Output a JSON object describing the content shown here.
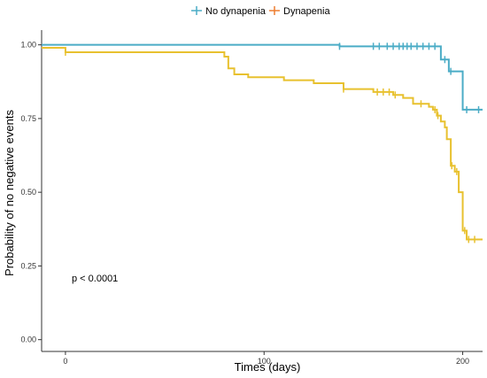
{
  "chart_data": {
    "type": "line",
    "step": true,
    "xlabel": "Times (days)",
    "ylabel": "Probability of no negative events",
    "xlim": [
      -12,
      210
    ],
    "ylim": [
      -0.04,
      1.05
    ],
    "x_ticks": [
      0,
      100,
      200
    ],
    "x_tick_labels": [
      "0",
      "100",
      "200"
    ],
    "y_ticks": [
      0.0,
      0.25,
      0.5,
      0.75,
      1.0
    ],
    "y_tick_labels": [
      "0.00",
      "0.25",
      "0.50",
      "0.75",
      "1.00"
    ],
    "grid": false,
    "legend_position": "top",
    "annotation": "p < 0.0001",
    "series": [
      {
        "name": "No dynapenia",
        "legend_label": "No dynapenia",
        "legend_marker": "-|-",
        "color": "#4bacc6",
        "steps": [
          [
            -12,
            1.0
          ],
          [
            138,
            0.995
          ],
          [
            189,
            0.95
          ],
          [
            193,
            0.91
          ],
          [
            200,
            0.78
          ],
          [
            210,
            0.78
          ]
        ],
        "censored": [
          [
            138,
            0.995
          ],
          [
            155,
            0.995
          ],
          [
            158,
            0.995
          ],
          [
            162,
            0.995
          ],
          [
            165,
            0.995
          ],
          [
            168,
            0.995
          ],
          [
            170,
            0.995
          ],
          [
            172,
            0.995
          ],
          [
            174,
            0.995
          ],
          [
            177,
            0.995
          ],
          [
            180,
            0.995
          ],
          [
            183,
            0.995
          ],
          [
            186,
            0.995
          ],
          [
            191,
            0.95
          ],
          [
            194,
            0.91
          ],
          [
            202,
            0.78
          ],
          [
            208,
            0.78
          ]
        ]
      },
      {
        "name": "Dynapenia",
        "legend_label": "Dynapenia",
        "legend_marker": "-|-",
        "color": "#e8c12f",
        "legend_color": "#ed7d31",
        "steps": [
          [
            -12,
            0.99
          ],
          [
            0,
            0.975
          ],
          [
            80,
            0.96
          ],
          [
            82,
            0.92
          ],
          [
            85,
            0.9
          ],
          [
            92,
            0.89
          ],
          [
            110,
            0.88
          ],
          [
            125,
            0.87
          ],
          [
            140,
            0.85
          ],
          [
            155,
            0.84
          ],
          [
            165,
            0.83
          ],
          [
            170,
            0.82
          ],
          [
            175,
            0.8
          ],
          [
            183,
            0.79
          ],
          [
            185,
            0.78
          ],
          [
            187,
            0.76
          ],
          [
            189,
            0.74
          ],
          [
            191,
            0.72
          ],
          [
            192,
            0.68
          ],
          [
            194,
            0.59
          ],
          [
            196,
            0.57
          ],
          [
            198,
            0.5
          ],
          [
            200,
            0.37
          ],
          [
            202,
            0.34
          ],
          [
            210,
            0.34
          ]
        ],
        "censored": [
          [
            0,
            0.975
          ],
          [
            140,
            0.85
          ],
          [
            157,
            0.84
          ],
          [
            160,
            0.84
          ],
          [
            163,
            0.84
          ],
          [
            166,
            0.83
          ],
          [
            179,
            0.8
          ],
          [
            186,
            0.78
          ],
          [
            187.5,
            0.76
          ],
          [
            194.5,
            0.59
          ],
          [
            197,
            0.57
          ],
          [
            201,
            0.37
          ],
          [
            203,
            0.34
          ],
          [
            206,
            0.34
          ]
        ]
      }
    ]
  }
}
